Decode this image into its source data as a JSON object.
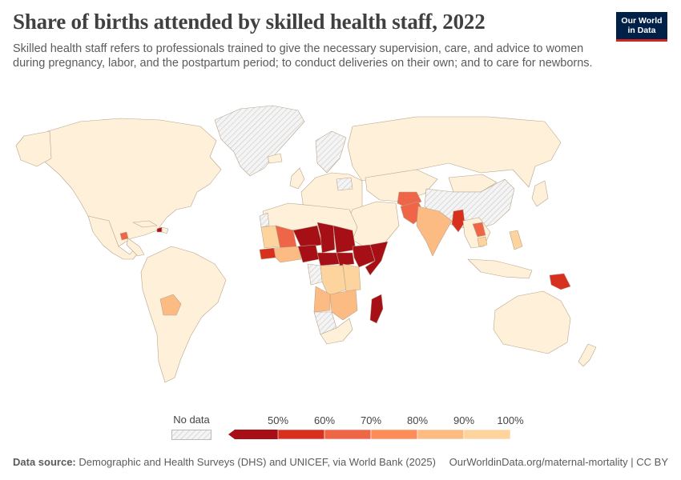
{
  "header": {
    "title": "Share of births attended by skilled health staff, 2022",
    "subtitle": "Skilled health staff refers to professionals trained to give the necessary supervision, care, and advice to women during pregnancy, labor, and the postpartum period; to conduct deliveries on their own; and to care for newborns."
  },
  "logo": {
    "line1": "Our World",
    "line2": "in Data"
  },
  "legend": {
    "no_data_label": "No data",
    "ticks": [
      "50%",
      "60%",
      "70%",
      "80%",
      "90%",
      "100%"
    ],
    "colors": [
      "#a50f15",
      "#d7301f",
      "#ef6548",
      "#fc8d59",
      "#fdbb84",
      "#fdd49e",
      "#fef0d9"
    ],
    "no_data_color": "#e6e6e6"
  },
  "footer": {
    "source_label": "Data source:",
    "source_text": "Demographic and Health Surveys (DHS) and UNICEF, via World Bank (2025)",
    "url_text": "OurWorldinData.org/maternal-mortality | CC BY"
  },
  "chart_data": {
    "type": "choropleth",
    "title": "Share of births attended by skilled health staff, 2022",
    "unit": "%",
    "bins": [
      50,
      60,
      70,
      80,
      90,
      100
    ],
    "regions_by_bin": {
      "below_50": [
        "Nigeria",
        "Chad",
        "Sudan",
        "Ethiopia",
        "Somalia",
        "South Sudan",
        "Madagascar",
        "Niger",
        "Central African Republic",
        "Haiti"
      ],
      "50_60": [
        "Guinea",
        "Papua New Guinea",
        "Myanmar"
      ],
      "60_70": [
        "Afghanistan",
        "Pakistan",
        "Mali",
        "Laos",
        "Guatemala"
      ],
      "70_80": [
        "Mauritania",
        "Burkina Faso",
        "Angola",
        "Tanzania",
        "Mozambique"
      ],
      "80_90": [
        "India",
        "Bolivia",
        "DR Congo",
        "Zambia",
        "Kenya",
        "Cambodia",
        "Philippines"
      ],
      "90_100": [
        "United States",
        "Canada",
        "Brazil",
        "Argentina",
        "Russia",
        "Australia",
        "Europe",
        "Mexico",
        "Kazakhstan",
        "Iran",
        "Saudi Arabia",
        "Egypt",
        "Algeria",
        "Libya",
        "South Africa",
        "Indonesia",
        "Mongolia",
        "Japan"
      ]
    },
    "no_data": [
      "Greenland",
      "China",
      "Sweden",
      "Finland",
      "Poland",
      "Namibia",
      "Botswana",
      "Gabon",
      "Republic of Congo",
      "Western Sahara"
    ]
  }
}
